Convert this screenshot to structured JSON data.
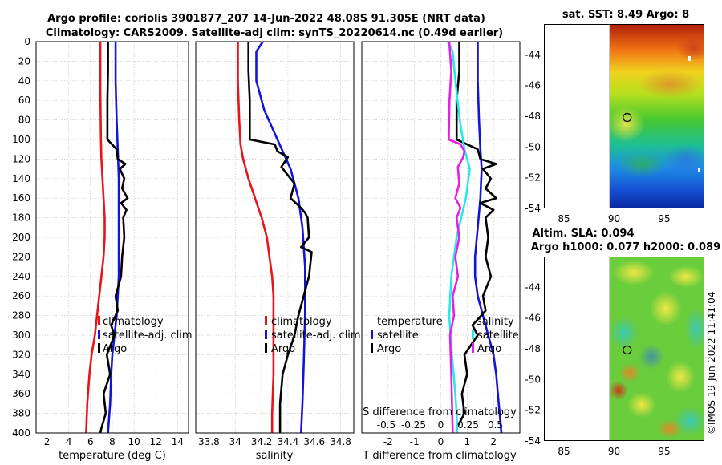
{
  "header": {
    "line1": "Argo profile: coriolis 3901877_207 14-Jun-2022 48.08S 91.305E (NRT data)",
    "line2": "Climatology: CARS2009. Satellite-adj clim: synTS_20220614.nc (0.49d earlier)"
  },
  "watermark": "©IMOS 19-Jun-2022 11:41:04",
  "colors": {
    "climatology": "#e8141a",
    "satellite": "#1414d8",
    "argo": "#000000",
    "cyan": "#28e8e8",
    "magenta": "#e61ee6"
  },
  "chart_data": [
    {
      "id": "temperature",
      "type": "line",
      "xlabel": "temperature (deg C)",
      "ylabel": "",
      "xlim": [
        1,
        15
      ],
      "ylim": [
        0,
        400
      ],
      "xticks": [
        2,
        4,
        6,
        8,
        10,
        12,
        14
      ],
      "yticks": [
        0,
        20,
        40,
        60,
        80,
        100,
        120,
        140,
        160,
        180,
        200,
        220,
        240,
        260,
        280,
        300,
        320,
        340,
        360,
        380,
        400
      ],
      "legend": [
        "climatology",
        "satellite-adj. clim",
        "Argo"
      ],
      "series": [
        {
          "name": "climatology",
          "color": "climatology",
          "x": [
            6.9,
            6.9,
            6.95,
            7.0,
            7.1,
            7.2,
            7.3,
            7.3,
            7.2,
            7.0,
            6.8,
            6.6,
            6.4,
            6.1,
            5.9,
            5.7,
            5.6
          ],
          "y": [
            0,
            50,
            100,
            120,
            140,
            160,
            180,
            200,
            220,
            240,
            260,
            280,
            300,
            320,
            340,
            370,
            400
          ]
        },
        {
          "name": "satellite-adj. clim",
          "color": "satellite",
          "x": [
            8.3,
            8.3,
            8.4,
            8.5,
            8.6,
            8.6,
            8.6,
            8.6,
            8.6,
            8.5,
            8.4,
            8.2,
            8.0,
            7.9,
            7.8,
            7.6
          ],
          "y": [
            0,
            40,
            80,
            110,
            140,
            170,
            200,
            220,
            240,
            260,
            280,
            300,
            320,
            340,
            370,
            400
          ]
        },
        {
          "name": "Argo",
          "color": "argo",
          "x": [
            7.6,
            7.6,
            7.55,
            7.55,
            8.4,
            8.5,
            9.2,
            8.7,
            9.1,
            8.9,
            9.4,
            8.8,
            9.3,
            9.0,
            9.1,
            8.9,
            8.8,
            8.3,
            8.5,
            7.9,
            8.2,
            7.5,
            7.8,
            7.2,
            7.4,
            7.0,
            6.9
          ],
          "y": [
            0,
            30,
            60,
            100,
            110,
            120,
            125,
            130,
            140,
            150,
            160,
            165,
            172,
            180,
            200,
            220,
            240,
            260,
            275,
            290,
            300,
            320,
            340,
            360,
            380,
            395,
            400
          ]
        }
      ]
    },
    {
      "id": "salinity",
      "type": "line",
      "xlabel": "salinity",
      "ylabel": "",
      "xlim": [
        33.7,
        34.9
      ],
      "ylim": [
        0,
        400
      ],
      "xticks": [
        33.8,
        34,
        34.2,
        34.4,
        34.6,
        34.8
      ],
      "xtick_labels": [
        "33.8",
        "34",
        "34.2",
        "34.4",
        "34.6",
        "34.8"
      ],
      "legend": [
        "climatology",
        "satellite-adj. clim",
        "Argo"
      ],
      "series": [
        {
          "name": "climatology",
          "color": "climatology",
          "x": [
            34.02,
            34.02,
            34.03,
            34.04,
            34.06,
            34.1,
            34.15,
            34.2,
            34.24,
            34.26,
            34.28,
            34.29,
            34.29,
            34.29,
            34.29,
            34.28,
            34.28
          ],
          "y": [
            0,
            40,
            80,
            105,
            120,
            140,
            160,
            180,
            200,
            220,
            240,
            260,
            280,
            300,
            340,
            380,
            400
          ]
        },
        {
          "name": "satellite-adj. clim",
          "color": "satellite",
          "x": [
            34.21,
            34.16,
            34.16,
            34.22,
            34.32,
            34.42,
            34.48,
            34.51,
            34.53,
            34.53,
            34.52,
            34.51,
            34.5
          ],
          "y": [
            0,
            10,
            40,
            70,
            100,
            130,
            160,
            190,
            230,
            280,
            330,
            370,
            400
          ]
        },
        {
          "name": "Argo",
          "color": "argo",
          "x": [
            34.1,
            34.1,
            34.11,
            34.11,
            34.3,
            34.32,
            34.4,
            34.35,
            34.45,
            34.42,
            34.5,
            34.53,
            34.55,
            34.56,
            34.5,
            34.58,
            34.56,
            34.52,
            34.48,
            34.45,
            34.4,
            34.36,
            34.34,
            34.34
          ],
          "y": [
            0,
            30,
            60,
            100,
            105,
            112,
            118,
            128,
            145,
            160,
            170,
            175,
            180,
            200,
            210,
            215,
            240,
            260,
            280,
            300,
            320,
            340,
            370,
            400
          ]
        }
      ]
    },
    {
      "id": "difference",
      "type": "line",
      "xlabel": "T difference from climatology",
      "toplabel": "S difference from climatology",
      "ylabel": "",
      "xlim": [
        -3,
        3
      ],
      "ylim": [
        0,
        400
      ],
      "xticks": [
        -2,
        -1,
        0,
        1,
        2
      ],
      "top_xticks": [
        -0.5,
        -0.25,
        0,
        0.25,
        0.5
      ],
      "top_xtick_labels": [
        "-0.5",
        "-0.25",
        "0",
        "0.25",
        "0.5"
      ],
      "legend_left": {
        "heading": "temperature",
        "items": [
          "satellite",
          "Argo"
        ]
      },
      "legend_right": {
        "heading": "salinity",
        "items": [
          "satellite",
          "Argo"
        ]
      },
      "series": [
        {
          "name": "T satellite",
          "color": "satellite",
          "x": [
            1.4,
            1.4,
            1.45,
            1.5,
            1.55,
            1.5,
            1.4,
            1.3,
            1.3,
            1.4,
            1.6,
            1.8,
            2.0,
            2.1,
            2.2,
            2.3
          ],
          "y": [
            0,
            40,
            80,
            110,
            130,
            160,
            190,
            220,
            240,
            260,
            280,
            300,
            320,
            340,
            370,
            400
          ]
        },
        {
          "name": "T Argo",
          "color": "argo",
          "x": [
            0.7,
            0.7,
            0.6,
            0.6,
            1.4,
            1.5,
            2.1,
            1.6,
            1.9,
            1.7,
            2.1,
            1.5,
            2.0,
            1.7,
            1.8,
            1.7,
            1.9,
            1.6,
            1.7,
            1.2,
            1.4,
            0.9,
            1.0,
            0.8,
            0.9,
            0.6,
            0.6
          ],
          "y": [
            0,
            30,
            60,
            100,
            110,
            120,
            125,
            130,
            140,
            150,
            160,
            165,
            172,
            180,
            200,
            220,
            240,
            260,
            275,
            290,
            300,
            320,
            340,
            360,
            380,
            395,
            400
          ]
        },
        {
          "name": "S satellite",
          "color": "cyan",
          "x": [
            0.26,
            0.45,
            0.55,
            0.72,
            0.9,
            1.1,
            0.95,
            0.6,
            0.4,
            0.32,
            0.42,
            0.55,
            0.6,
            0.62
          ],
          "y": [
            0,
            10,
            40,
            80,
            110,
            130,
            160,
            200,
            240,
            280,
            320,
            360,
            380,
            400
          ]
        },
        {
          "name": "S Argo",
          "color": "magenta",
          "x": [
            0.32,
            0.4,
            0.33,
            0.3,
            0.75,
            0.9,
            0.85,
            0.65,
            0.7,
            0.55,
            0.75,
            0.6,
            0.7,
            0.55,
            0.65,
            0.45,
            0.5,
            0.35,
            0.4,
            0.45
          ],
          "y": [
            0,
            30,
            60,
            100,
            105,
            112,
            118,
            128,
            145,
            160,
            170,
            180,
            200,
            220,
            240,
            260,
            280,
            300,
            340,
            400
          ]
        }
      ]
    },
    {
      "id": "sst_map",
      "type": "heatmap",
      "title": "sat. SST: 8.49 Argo: 8",
      "xlim": [
        83,
        99
      ],
      "ylim": [
        -54,
        -42
      ],
      "xticks": [
        85,
        90,
        95
      ],
      "yticks": [
        -44,
        -46,
        -48,
        -50,
        -52,
        -54
      ],
      "marker": {
        "lon": 91.3,
        "lat": -48.08
      }
    },
    {
      "id": "sla_map",
      "type": "heatmap",
      "title_line1": "Altim. SLA: 0.094",
      "title_line2": "Argo h1000: 0.077 h2000: 0.089",
      "xlim": [
        83,
        99
      ],
      "ylim": [
        -54,
        -42
      ],
      "xticks": [
        85,
        90,
        95
      ],
      "yticks": [
        -44,
        -46,
        -48,
        -50,
        -52,
        -54
      ],
      "marker": {
        "lon": 91.3,
        "lat": -48.08
      }
    }
  ]
}
